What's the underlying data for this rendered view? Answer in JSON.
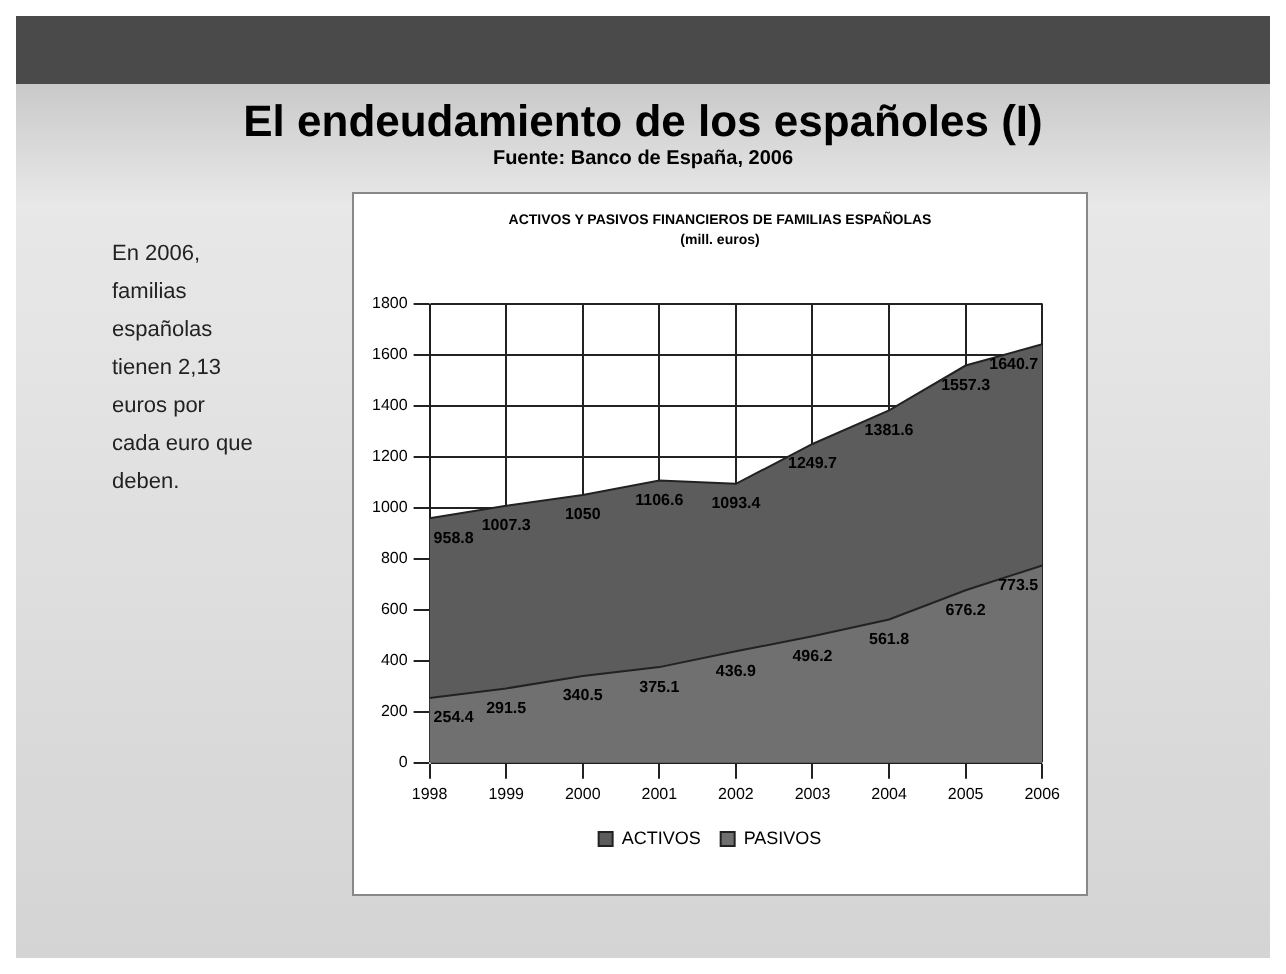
{
  "chart_data": {
    "type": "area",
    "title": "El endeudamiento de los españoles (I)",
    "subtitle": "Fuente: Banco de España, 2006",
    "annotations": [
      "En 2006, familias españolas tienen 2,13 euros por cada euro que deben.",
      "ACTIVOS Y PASIVOS FINANCIEROS DE FAMILIAS ESPAÑOLAS",
      "(mill. euros)"
    ],
    "categories": [
      "1998",
      "1999",
      "2000",
      "2001",
      "2002",
      "2003",
      "2004",
      "2005",
      "2006"
    ],
    "series": [
      {
        "name": "ACTIVOS",
        "color": "#5c5c5c",
        "values": [
          958.8,
          1007.3,
          1050,
          1106.6,
          1093.4,
          1249.7,
          1381.6,
          1557.3,
          1640.7
        ]
      },
      {
        "name": "PASIVOS",
        "color": "#707070",
        "values": [
          254.4,
          291.5,
          340.5,
          375.1,
          436.9,
          496.2,
          561.8,
          676.2,
          773.5
        ]
      }
    ],
    "ylim": [
      0,
      1800
    ],
    "yticks": [
      0,
      200,
      400,
      600,
      800,
      1000,
      1200,
      1400,
      1600,
      1800
    ],
    "grid": true,
    "legend": "bottom",
    "data_labels": true
  }
}
